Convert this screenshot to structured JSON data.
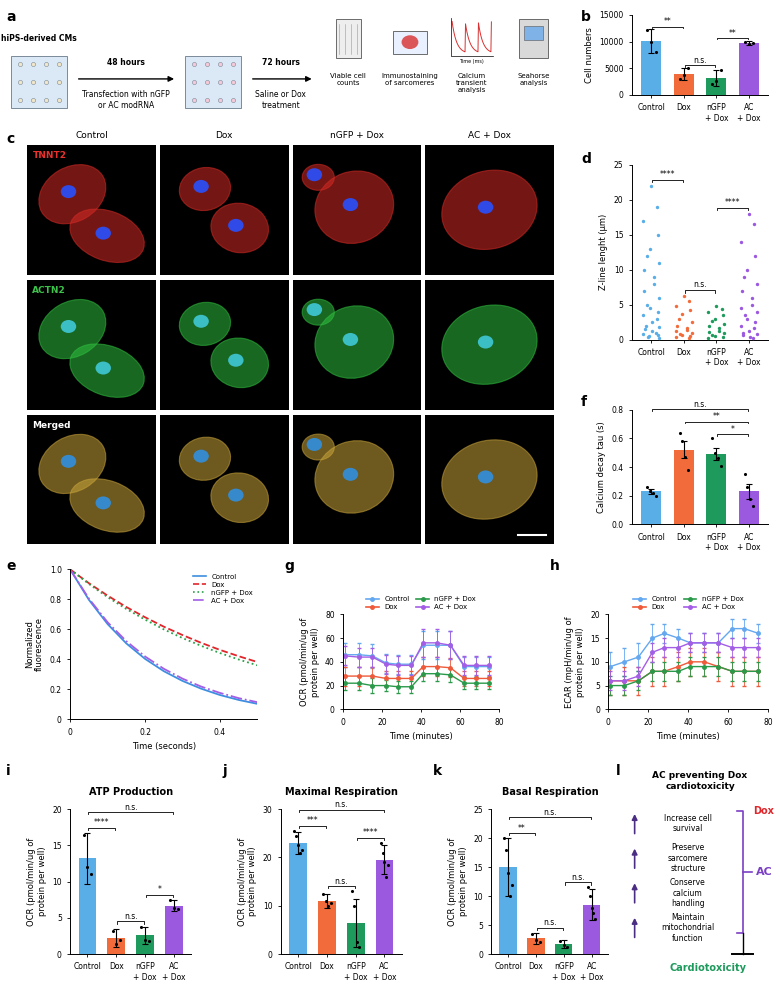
{
  "schematic": {
    "panel": "a",
    "cells": "hiPS-derived CMs",
    "step1_time": "48 hours",
    "step1": "Transfection with nGFP or AC modRNA",
    "step2_time": "72 hours",
    "step2": "Saline or Dox treatment",
    "readouts": [
      "Viable cell counts",
      "Immunostaining of sarcomeres",
      "Calcium transient analysis",
      "Seahorse analysis"
    ],
    "trace_axis": "Time (ms)"
  },
  "images": {
    "panel": "c",
    "columns": [
      "Control",
      "Dox",
      "nGFP + Dox",
      "AC + Dox"
    ],
    "rows": [
      {
        "name": "TNNT2",
        "color": "#e8302c"
      },
      {
        "name": "ACTN2",
        "color": "#3cc24a"
      },
      {
        "name": "Merged",
        "color": "#ffffff"
      }
    ]
  },
  "summary": {
    "panel": "l",
    "title": "AC preventing Dox cardiotoxicity",
    "effects": [
      "Increase cell survival",
      "Preserve sarcomere structure",
      "Conserve calcium handling",
      "Maintain mitochondrial function"
    ],
    "treatment": "Dox",
    "protector": "AC",
    "outcome": "Cardiotoxicity"
  },
  "chart_data": [
    {
      "panel": "b",
      "type": "bar",
      "categories": [
        "Control",
        "Dox",
        "nGFP + Dox",
        "AC + Dox"
      ],
      "values": [
        10100,
        3900,
        3100,
        9800
      ],
      "errors": [
        2200,
        1100,
        1500,
        350
      ],
      "points": [
        [
          12200,
          10000,
          8100
        ],
        [
          3000,
          3700,
          5000
        ],
        [
          2000,
          2600,
          4700
        ],
        [
          10000,
          9600,
          9800
        ]
      ],
      "colors": [
        "#5aaee8",
        "#f26b3a",
        "#1e9a5c",
        "#9b59e0"
      ],
      "ylabel": "Cell numbers",
      "ylim": [
        0,
        15000
      ],
      "yticks": [
        0,
        5000,
        10000,
        15000
      ],
      "significance": [
        {
          "from": "Control",
          "to": "Dox",
          "label": "**"
        },
        {
          "from": "Dox",
          "to": "nGFP + Dox",
          "label": "n.s."
        },
        {
          "from": "nGFP + Dox",
          "to": "AC + Dox",
          "label": "**"
        }
      ]
    },
    {
      "panel": "d",
      "type": "strip",
      "categories": [
        "Control",
        "Dox",
        "nGFP + Dox",
        "AC + Dox"
      ],
      "points": [
        [
          22,
          19,
          17,
          15,
          13,
          12,
          11,
          10,
          9,
          8,
          7,
          6,
          5,
          4.5,
          4,
          3.5,
          3,
          2.5,
          2,
          1.8,
          1.5,
          1.2,
          1,
          0.8,
          0.6,
          0.5,
          0.4,
          0.3
        ],
        [
          6.2,
          5.5,
          4.8,
          4.2,
          3.6,
          3,
          2.5,
          2,
          1.7,
          1.4,
          1.2,
          1,
          0.8,
          0.6,
          0.5,
          0.4,
          0.3
        ],
        [
          4.8,
          4.4,
          4,
          3.5,
          3,
          2.6,
          2.2,
          1.9,
          1.6,
          1.3,
          1.1,
          0.9,
          0.7,
          0.5,
          0.4,
          0.3
        ],
        [
          18,
          16.5,
          14,
          12,
          10,
          9,
          8,
          7,
          6,
          5,
          4.5,
          4,
          3.5,
          3,
          2.5,
          2,
          1.6,
          1.3,
          1,
          0.8,
          0.6,
          0.4,
          0.3
        ]
      ],
      "colors": [
        "#5aaee8",
        "#f26b3a",
        "#1e9a5c",
        "#9b59e0"
      ],
      "ylabel": "Z-line lenght (μm)",
      "ylim": [
        0,
        25
      ],
      "yticks": [
        0,
        5,
        10,
        15,
        20,
        25
      ],
      "significance": [
        {
          "from": "Control",
          "to": "Dox",
          "label": "****"
        },
        {
          "from": "Dox",
          "to": "nGFP + Dox",
          "label": "n.s."
        },
        {
          "from": "nGFP + Dox",
          "to": "AC + Dox",
          "label": "****"
        }
      ]
    },
    {
      "panel": "e",
      "type": "line",
      "x": [
        0,
        0.05,
        0.1,
        0.15,
        0.2,
        0.25,
        0.3,
        0.35,
        0.4,
        0.45,
        0.5
      ],
      "series": [
        {
          "name": "Control",
          "color": "#3d8fe0",
          "line_style": "solid",
          "values": [
            1.0,
            0.797,
            0.635,
            0.506,
            0.403,
            0.321,
            0.256,
            0.204,
            0.162,
            0.129,
            0.103
          ]
        },
        {
          "name": "Dox",
          "color": "#e0262b",
          "line_style": "dashed",
          "values": [
            1.0,
            0.908,
            0.825,
            0.749,
            0.681,
            0.618,
            0.562,
            0.51,
            0.463,
            0.421,
            0.382
          ]
        },
        {
          "name": "nGFP + Dox",
          "color": "#2aa14a",
          "line_style": "dotted",
          "values": [
            1.0,
            0.903,
            0.815,
            0.736,
            0.665,
            0.6,
            0.542,
            0.49,
            0.442,
            0.399,
            0.36
          ]
        },
        {
          "name": "AC + Dox",
          "color": "#a25ee6",
          "line_style": "dashdot",
          "values": [
            1.0,
            0.805,
            0.647,
            0.521,
            0.419,
            0.337,
            0.271,
            0.218,
            0.176,
            0.141,
            0.114
          ]
        }
      ],
      "xlabel": "Time (seconds)",
      "ylabel": "Normalized fluorescence",
      "xlim": [
        0,
        0.5
      ],
      "xticks": [
        0,
        0.2,
        0.4
      ],
      "ylim": [
        0,
        1.0
      ],
      "yticks": [
        0,
        0.2,
        0.4,
        0.6,
        0.8,
        1.0
      ],
      "legend": "upper right"
    },
    {
      "panel": "f",
      "type": "bar",
      "categories": [
        "Control",
        "Dox",
        "nGFP + Dox",
        "AC + Dox"
      ],
      "values": [
        0.23,
        0.52,
        0.49,
        0.23
      ],
      "errors": [
        0.015,
        0.06,
        0.04,
        0.05
      ],
      "points": [
        [
          0.26,
          0.23,
          0.22,
          0.2
        ],
        [
          0.64,
          0.58,
          0.47,
          0.38
        ],
        [
          0.6,
          0.5,
          0.46,
          0.41
        ],
        [
          0.35,
          0.26,
          0.18,
          0.13
        ]
      ],
      "colors": [
        "#5aaee8",
        "#f26b3a",
        "#1e9a5c",
        "#9b59e0"
      ],
      "ylabel": "Calcium decay tau (s)",
      "ylim": [
        0,
        0.8
      ],
      "yticks": [
        0.0,
        0.2,
        0.4,
        0.6,
        0.8
      ],
      "significance": [
        {
          "from": "Control",
          "to": "AC + Dox",
          "label": "n.s."
        },
        {
          "from": "Dox",
          "to": "AC + Dox",
          "label": "**"
        },
        {
          "from": "nGFP + Dox",
          "to": "AC + Dox",
          "label": "*"
        }
      ]
    },
    {
      "panel": "g",
      "type": "line",
      "marker": "o",
      "x": [
        1,
        8,
        15,
        22,
        28,
        35,
        41,
        48,
        55,
        62,
        68,
        75
      ],
      "series": [
        {
          "name": "Control",
          "color": "#64a8f0",
          "values": [
            46,
            46,
            45,
            39,
            38,
            38,
            54,
            54,
            54,
            36,
            36,
            36
          ],
          "errors": [
            10,
            10,
            10,
            8,
            8,
            8,
            12,
            12,
            12,
            8,
            8,
            8
          ]
        },
        {
          "name": "Dox",
          "color": "#ee5a3a",
          "values": [
            28,
            28,
            28,
            26,
            26,
            26,
            36,
            36,
            35,
            26,
            26,
            26
          ],
          "errors": [
            8,
            8,
            8,
            6,
            6,
            6,
            8,
            8,
            8,
            6,
            6,
            6
          ]
        },
        {
          "name": "nGFP + Dox",
          "color": "#2a9a4a",
          "values": [
            22,
            22,
            20,
            20,
            19,
            19,
            30,
            30,
            29,
            22,
            22,
            22
          ],
          "errors": [
            6,
            6,
            6,
            5,
            5,
            5,
            6,
            6,
            6,
            5,
            5,
            5
          ]
        },
        {
          "name": "AC + Dox",
          "color": "#a45ee6",
          "values": [
            45,
            44,
            44,
            38,
            37,
            37,
            56,
            56,
            54,
            37,
            37,
            37
          ],
          "errors": [
            8,
            8,
            8,
            8,
            8,
            8,
            12,
            12,
            12,
            8,
            8,
            8
          ]
        }
      ],
      "xlabel": "Time (minutes)",
      "ylabel": "OCR (pmol/min/ug of protein per well)",
      "xlim": [
        0,
        80
      ],
      "xticks": [
        0,
        20,
        40,
        60,
        80
      ],
      "ylim": [
        0,
        80
      ],
      "yticks": [
        0,
        20,
        40,
        60,
        80
      ],
      "legend": "upper center"
    },
    {
      "panel": "h",
      "type": "line",
      "marker": "o",
      "x": [
        1,
        8,
        15,
        22,
        28,
        35,
        41,
        48,
        55,
        62,
        68,
        75
      ],
      "series": [
        {
          "name": "Control",
          "color": "#64a8f0",
          "values": [
            9,
            10,
            11,
            15,
            16,
            15,
            14,
            14,
            14,
            17,
            17,
            16
          ],
          "errors": [
            3,
            3,
            3,
            3,
            2,
            2,
            2,
            2,
            2,
            2,
            2,
            2
          ]
        },
        {
          "name": "Dox",
          "color": "#ee5a3a",
          "values": [
            6,
            6,
            6,
            8,
            8,
            9,
            10,
            10,
            9,
            8,
            8,
            8
          ],
          "errors": [
            3,
            3,
            3,
            3,
            3,
            3,
            3,
            3,
            3,
            3,
            3,
            3
          ]
        },
        {
          "name": "nGFP + Dox",
          "color": "#2a9a4a",
          "values": [
            5,
            5,
            6,
            8,
            8,
            8,
            9,
            9,
            9,
            8,
            8,
            8
          ],
          "errors": [
            2,
            2,
            2,
            2,
            2,
            2,
            2,
            2,
            2,
            2,
            2,
            2
          ]
        },
        {
          "name": "AC + Dox",
          "color": "#a45ee6",
          "values": [
            6,
            6,
            7,
            12,
            13,
            13,
            14,
            14,
            14,
            13,
            13,
            13
          ],
          "errors": [
            2,
            2,
            2,
            2,
            2,
            2,
            2,
            2,
            2,
            2,
            2,
            2
          ]
        }
      ],
      "xlabel": "Time (minutes)",
      "ylabel": "ECAR (mpH/min/ug of protein per well)",
      "xlim": [
        0,
        80
      ],
      "xticks": [
        0,
        20,
        40,
        60,
        80
      ],
      "ylim": [
        0,
        20
      ],
      "yticks": [
        0,
        5,
        10,
        15,
        20
      ],
      "legend": "upper center"
    },
    {
      "panel": "i",
      "type": "bar",
      "title": "ATP Production",
      "categories": [
        "Control",
        "Dox",
        "nGFP + Dox",
        "AC + Dox"
      ],
      "values": [
        13.2,
        2.2,
        2.6,
        6.7
      ],
      "errors": [
        3.5,
        1.2,
        1.2,
        0.8
      ],
      "points": [
        [
          16.5,
          12.0,
          11.0
        ],
        [
          3.2,
          1.4,
          2.0
        ],
        [
          3.8,
          2.0,
          1.8
        ],
        [
          7.5,
          6.3,
          6.2
        ]
      ],
      "colors": [
        "#5aaee8",
        "#f26b3a",
        "#1e9a5c",
        "#9b59e0"
      ],
      "ylabel": "OCR (pmol/min/ug of protein per well)",
      "ylim": [
        0,
        20
      ],
      "yticks": [
        0,
        5,
        10,
        15,
        20
      ],
      "significance": [
        {
          "from": "Control",
          "to": "AC + Dox",
          "label": "n.s."
        },
        {
          "from": "Control",
          "to": "Dox",
          "label": "****"
        },
        {
          "from": "Dox",
          "to": "nGFP + Dox",
          "label": "n.s."
        },
        {
          "from": "nGFP + Dox",
          "to": "AC + Dox",
          "label": "*"
        }
      ]
    },
    {
      "panel": "j",
      "type": "bar",
      "title": "Maximal Respiration",
      "categories": [
        "Control",
        "Dox",
        "nGFP + Dox",
        "AC + Dox"
      ],
      "values": [
        23,
        11,
        6.5,
        19.5
      ],
      "errors": [
        2.3,
        1.5,
        5,
        3
      ],
      "points": [
        [
          25.5,
          24.5,
          22.5,
          21.0,
          21.5
        ],
        [
          12.5,
          11.0,
          10.0,
          10.5
        ],
        [
          13.0,
          10.0,
          2.5,
          1.5
        ],
        [
          23.0,
          21.0,
          19.0,
          16.0,
          18.5
        ]
      ],
      "colors": [
        "#5aaee8",
        "#f26b3a",
        "#1e9a5c",
        "#9b59e0"
      ],
      "ylabel": "OCR (pmol/min/ug of protein per well)",
      "ylim": [
        0,
        30
      ],
      "yticks": [
        0,
        10,
        20,
        30
      ],
      "significance": [
        {
          "from": "Control",
          "to": "AC + Dox",
          "label": "n.s."
        },
        {
          "from": "Control",
          "to": "Dox",
          "label": "***"
        },
        {
          "from": "Dox",
          "to": "nGFP + Dox",
          "label": "n.s."
        },
        {
          "from": "nGFP + Dox",
          "to": "AC + Dox",
          "label": "****"
        }
      ]
    },
    {
      "panel": "k",
      "type": "bar",
      "title": "Basal Respiration",
      "categories": [
        "Control",
        "Dox",
        "nGFP + Dox",
        "AC + Dox"
      ],
      "values": [
        15,
        2.7,
        1.7,
        8.5
      ],
      "errors": [
        5,
        1,
        0.7,
        2.7
      ],
      "points": [
        [
          20,
          18,
          14,
          10,
          12
        ],
        [
          3.5,
          2.5,
          2.0
        ],
        [
          2.2,
          1.5,
          1.2
        ],
        [
          11.5,
          10,
          8,
          7,
          6
        ]
      ],
      "colors": [
        "#5aaee8",
        "#f26b3a",
        "#1e9a5c",
        "#9b59e0"
      ],
      "ylabel": "OCR (pmol/min/ug of protein per well)",
      "ylim": [
        0,
        25
      ],
      "yticks": [
        0,
        5,
        10,
        15,
        20,
        25
      ],
      "significance": [
        {
          "from": "Control",
          "to": "AC + Dox",
          "label": "n.s."
        },
        {
          "from": "Control",
          "to": "Dox",
          "label": "**"
        },
        {
          "from": "Dox",
          "to": "nGFP + Dox",
          "label": "n.s."
        },
        {
          "from": "nGFP + Dox",
          "to": "AC + Dox",
          "label": "n.s."
        }
      ]
    }
  ]
}
